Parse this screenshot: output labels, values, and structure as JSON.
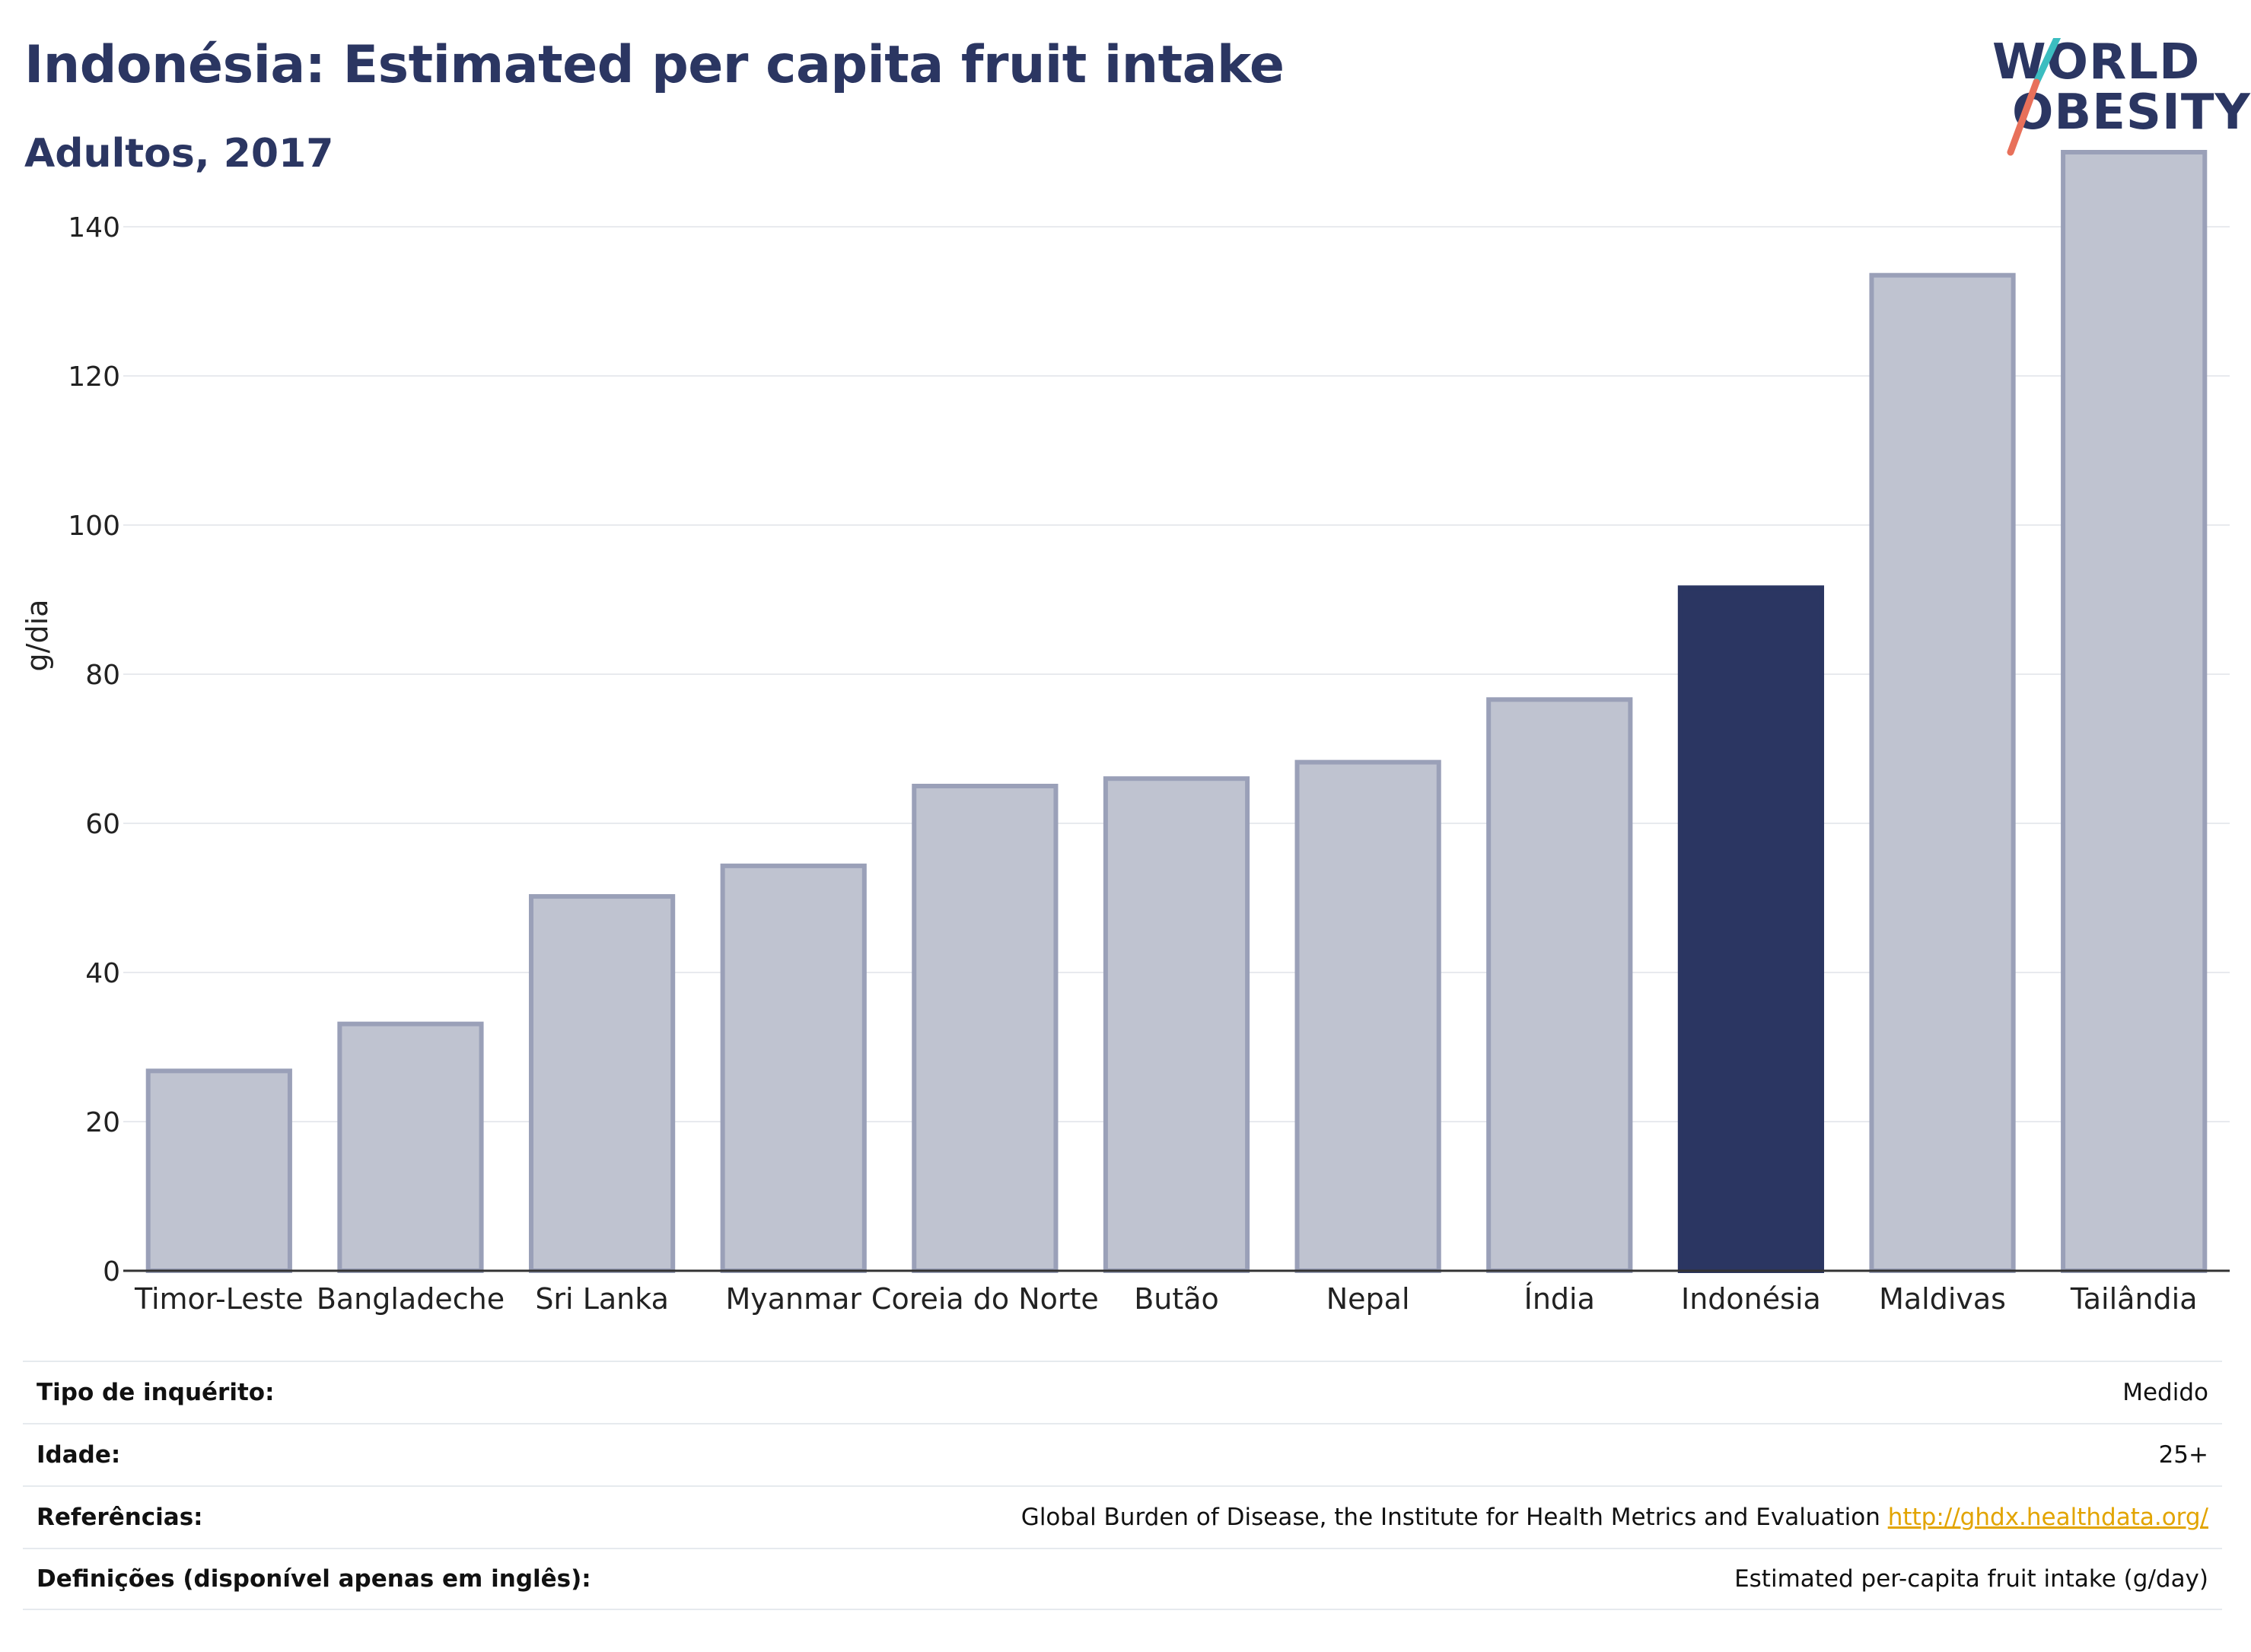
{
  "header": {
    "title": "Indonésia: Estimated per capita fruit intake",
    "subtitle": "Adultos, 2017"
  },
  "logo": {
    "line1": "WORLD",
    "line2": "OBESITY",
    "colors": {
      "text": "#2b3662",
      "slash_top": "#3bbdc0",
      "slash_bottom": "#e8705a"
    }
  },
  "chart_data": {
    "type": "bar",
    "ylabel": "g/dia",
    "xlabel": "",
    "ylim": [
      0,
      150
    ],
    "yticks": [
      0,
      20,
      40,
      60,
      80,
      100,
      120,
      140
    ],
    "grid": true,
    "categories": [
      "Timor-Leste",
      "Bangladeche",
      "Sri Lanka",
      "Myanmar",
      "Coreia do Norte",
      "Butão",
      "Nepal",
      "Índia",
      "Indonésia",
      "Maldivas",
      "Tailândia"
    ],
    "values": [
      26.8,
      33.1,
      50.2,
      54.3,
      65.0,
      66.0,
      68.2,
      76.6,
      91.6,
      133.5,
      150.0
    ],
    "highlight": "Indonésia",
    "colors": {
      "bar": "#bfc3d0",
      "bar_border": "#9aa0b8",
      "highlight": "#2b3662"
    }
  },
  "info": {
    "rows": [
      {
        "label": "Tipo de inquérito:",
        "value": "Medido"
      },
      {
        "label": "Idade:",
        "value": "25+"
      },
      {
        "label": "Referências:",
        "value": "Global Burden of Disease, the Institute for Health Metrics and Evaluation",
        "link": "http://ghdx.healthdata.org/"
      },
      {
        "label": "Definições (disponível apenas em inglês):",
        "value": "Estimated per-capita fruit intake (g/day)"
      }
    ]
  }
}
